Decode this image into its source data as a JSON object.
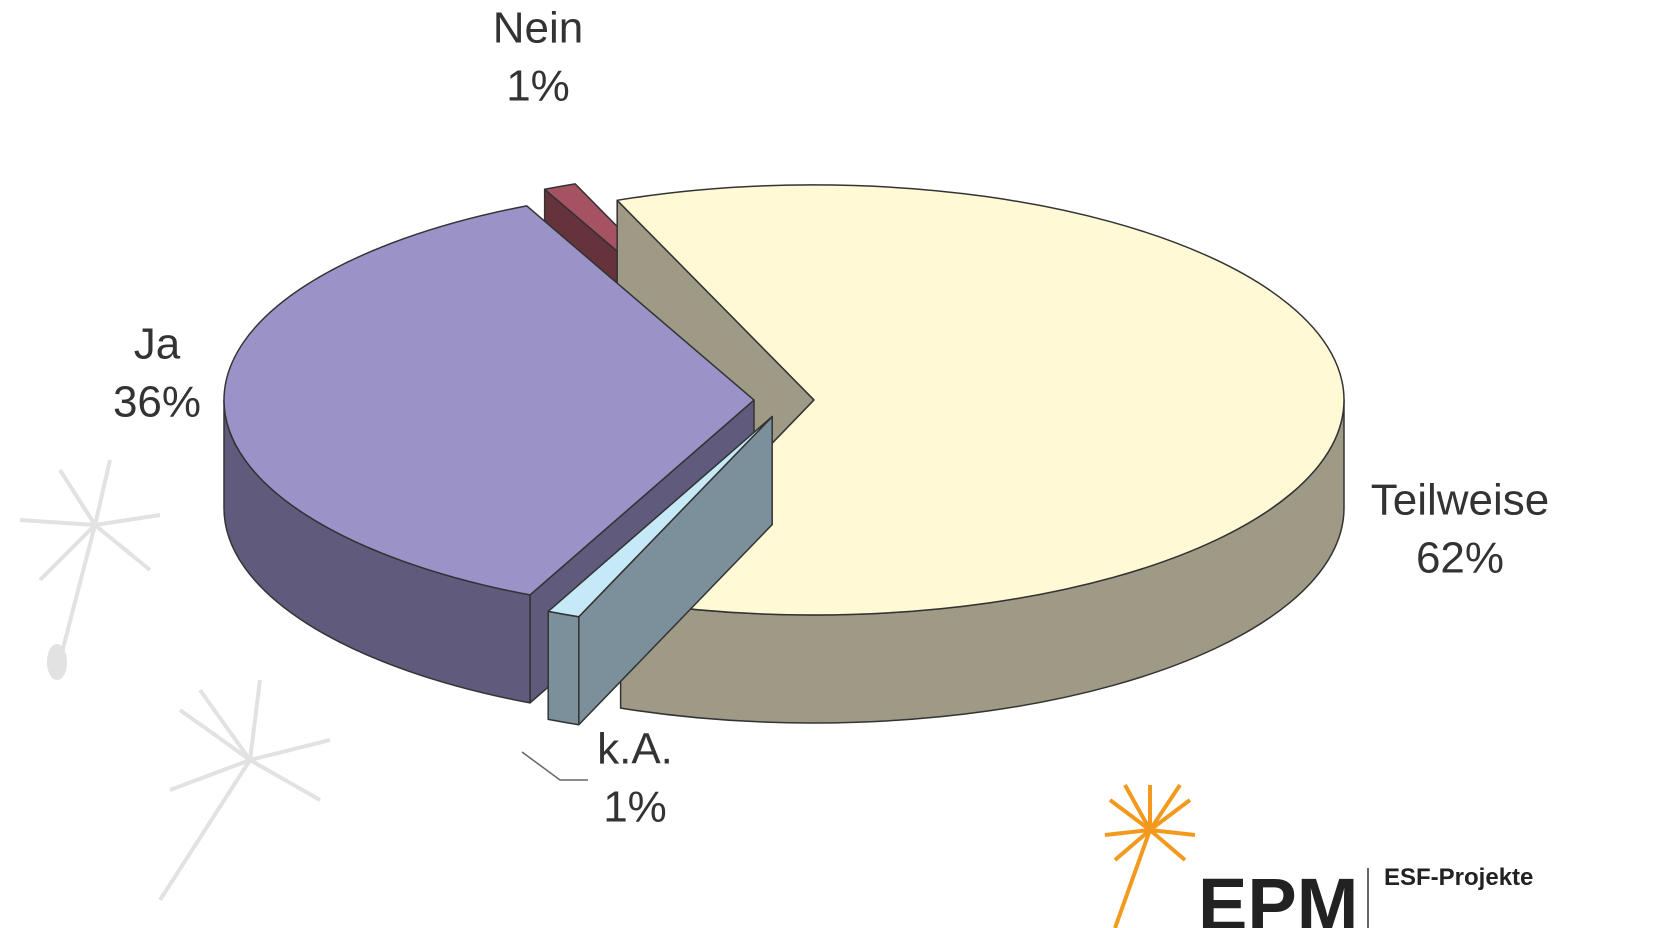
{
  "chart_data": {
    "type": "pie3d",
    "categories": [
      "Ja",
      "Nein",
      "Teilweise",
      "k.A."
    ],
    "values": [
      36,
      1,
      62,
      1
    ],
    "value_labels": [
      "36%",
      "1%",
      "62%",
      "1%"
    ],
    "colors": [
      "#9b93c8",
      "#a55262",
      "#fff9d6",
      "#c6e9f8"
    ]
  },
  "logo": {
    "mark": "EPM",
    "text": "ESF-Projekte"
  }
}
